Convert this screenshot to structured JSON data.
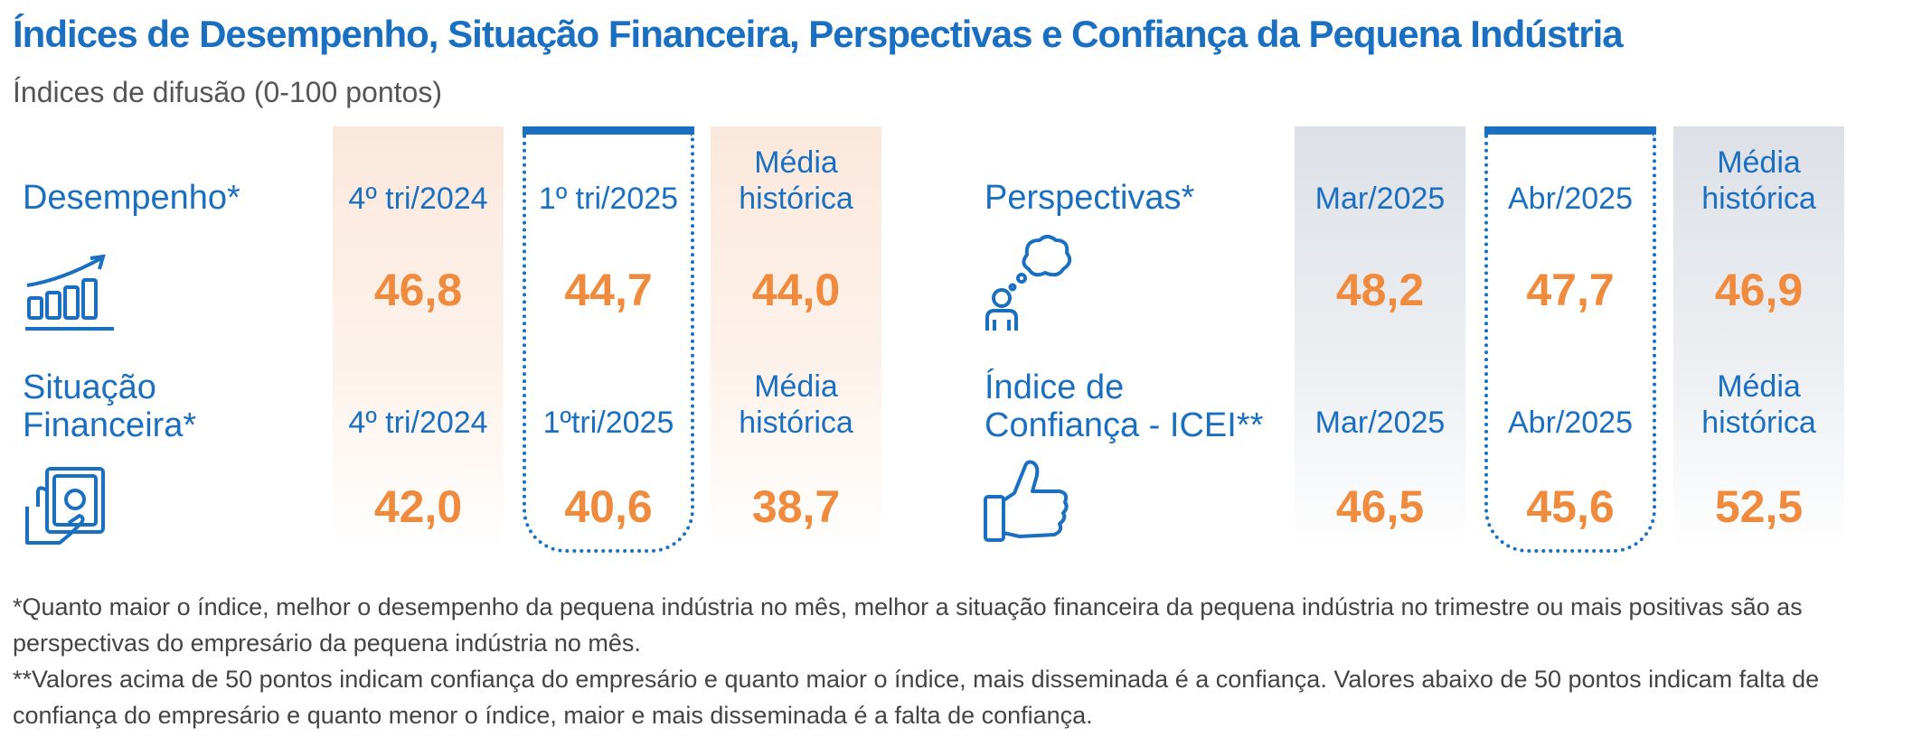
{
  "header": {
    "title": "Índices de Desempenho, Situação Financeira, Perspectivas e Confiança da Pequena Indústria",
    "subtitle": "Índices de difusão (0-100 pontos)"
  },
  "left_panel": {
    "rows": [
      {
        "label": "Desempenho*",
        "icon": "bar-growth-icon",
        "headers": [
          "4º tri/2024",
          "1º tri/2025",
          "Média\nhistórica"
        ],
        "values": [
          "46,8",
          "44,7",
          "44,0"
        ]
      },
      {
        "label": "Situação\nFinanceira*",
        "icon": "money-hand-icon",
        "headers": [
          "4º tri/2024",
          "1ºtri/2025",
          "Média\nhistórica"
        ],
        "values": [
          "42,0",
          "40,6",
          "38,7"
        ]
      }
    ]
  },
  "right_panel": {
    "rows": [
      {
        "label": "Perspectivas*",
        "icon": "thinking-person-icon",
        "headers": [
          "Mar/2025",
          "Abr/2025",
          "Média\nhistórica"
        ],
        "values": [
          "48,2",
          "47,7",
          "46,9"
        ]
      },
      {
        "label": "Índice de\nConfiança - ICEI**",
        "icon": "thumbs-up-icon",
        "headers": [
          "Mar/2025",
          "Abr/2025",
          "Média\nhistórica"
        ],
        "values": [
          "46,5",
          "45,6",
          "52,5"
        ]
      }
    ]
  },
  "notes": [
    "*Quanto maior o índice, melhor o desempenho da pequena indústria no mês, melhor a situação financeira da pequena indústria no trimestre ou mais positivas são as perspectivas do empresário da pequena indústria no mês.",
    "**Valores acima de 50 pontos indicam confiança do empresário e quanto maior o índice, mais disseminada é a confiança. Valores abaixo de 50 pontos indicam falta de confiança do empresário e quanto menor o índice, maior e mais disseminada é a falta de confiança."
  ],
  "colors": {
    "accent_blue": "#1a6fc0",
    "value_orange": "#f08a3c",
    "peach_column": "#fbe8dc",
    "gray_column": "#dde0e6"
  }
}
